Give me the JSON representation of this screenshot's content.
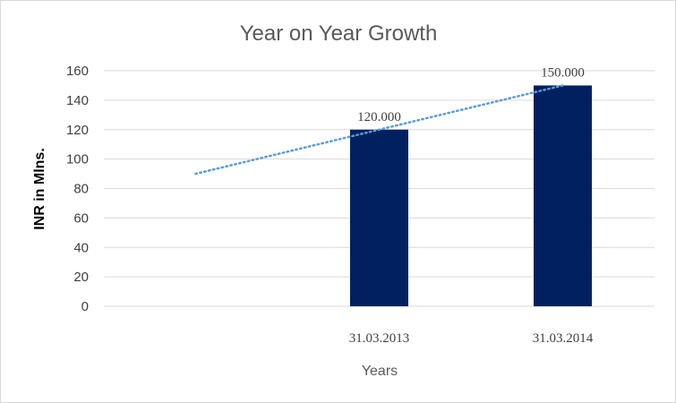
{
  "chart_data": {
    "type": "bar",
    "title": "Year on Year Growth",
    "xlabel": "Years",
    "ylabel": "INR in Mlns.",
    "categories": [
      "",
      "31.03.2013",
      "31.03.2014"
    ],
    "values": [
      null,
      120,
      150
    ],
    "data_labels": [
      "",
      "120.000",
      "150.000"
    ],
    "ylim": [
      0,
      160
    ],
    "yticks": [
      0,
      20,
      40,
      60,
      80,
      100,
      120,
      140,
      160
    ],
    "grid": true,
    "legend": "none",
    "trendline": {
      "type": "linear",
      "style": "dotted",
      "start": 90,
      "end": 150
    },
    "bar_color": "#002060",
    "trend_color": "#5b9bd5"
  }
}
